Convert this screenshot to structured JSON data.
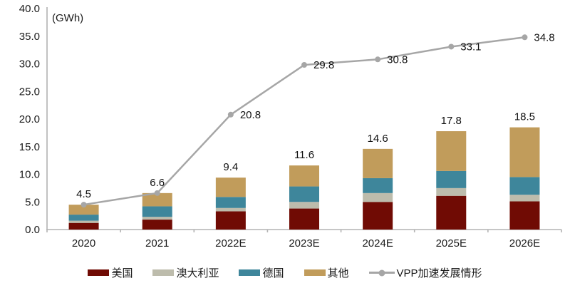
{
  "chart_data": {
    "type": "bar",
    "subtype": "stacked-bar-with-line",
    "unit_label": "(GWh)",
    "categories": [
      "2020",
      "2021",
      "2022E",
      "2023E",
      "2024E",
      "2025E",
      "2026E"
    ],
    "series": [
      {
        "name": "美国",
        "color": "#700B04",
        "values": [
          1.2,
          1.8,
          3.3,
          3.8,
          5.0,
          6.1,
          5.1
        ]
      },
      {
        "name": "澳大利亚",
        "color": "#BDBCAC",
        "values": [
          0.4,
          0.5,
          0.6,
          1.2,
          1.6,
          1.4,
          1.2
        ]
      },
      {
        "name": "德国",
        "color": "#3E869B",
        "values": [
          1.1,
          1.9,
          2.0,
          2.8,
          2.7,
          3.1,
          3.2
        ]
      },
      {
        "name": "其他",
        "color": "#C19C5B",
        "values": [
          1.8,
          2.4,
          3.5,
          3.8,
          5.3,
          7.2,
          9.0
        ]
      }
    ],
    "bar_totals": [
      4.5,
      6.6,
      9.4,
      11.6,
      14.6,
      17.8,
      18.5
    ],
    "bar_total_labels": [
      "",
      "",
      "9.4",
      "11.6",
      "14.6",
      "17.8",
      "18.5"
    ],
    "line_series": {
      "name": "VPP加速发展情形",
      "color": "#A6A6A6",
      "values": [
        4.5,
        6.6,
        20.8,
        29.8,
        30.8,
        33.1,
        34.8
      ],
      "labels": [
        {
          "text": "4.5",
          "placement": "above"
        },
        {
          "text": "6.6",
          "placement": "above"
        },
        {
          "text": "20.8",
          "placement": "right"
        },
        {
          "text": "29.8",
          "placement": "right"
        },
        {
          "text": "30.8",
          "placement": "right"
        },
        {
          "text": "33.1",
          "placement": "right"
        },
        {
          "text": "34.8",
          "placement": "right"
        }
      ]
    },
    "y_axis": {
      "min": 0,
      "max": 40,
      "step": 5,
      "tick_labels": [
        "0.0",
        "5.0",
        "10.0",
        "15.0",
        "20.0",
        "25.0",
        "30.0",
        "35.0",
        "40.0"
      ]
    },
    "grid": false,
    "legend_position": "bottom",
    "title": "",
    "xlabel": "",
    "ylabel": "(GWh)",
    "ylim": [
      0,
      40
    ]
  },
  "legend": {
    "items": [
      {
        "label": "美国",
        "type": "rect",
        "color": "#700B04"
      },
      {
        "label": "澳大利亚",
        "type": "rect",
        "color": "#BDBCAC"
      },
      {
        "label": "德国",
        "type": "rect",
        "color": "#3E869B"
      },
      {
        "label": "其他",
        "type": "rect",
        "color": "#C19C5B"
      },
      {
        "label": "VPP加速发展情形",
        "type": "line",
        "color": "#A6A6A6"
      }
    ]
  },
  "colors": {
    "background": "#FFFFFF",
    "axis": "#B3B3B3",
    "text": "#1A1A1A"
  }
}
